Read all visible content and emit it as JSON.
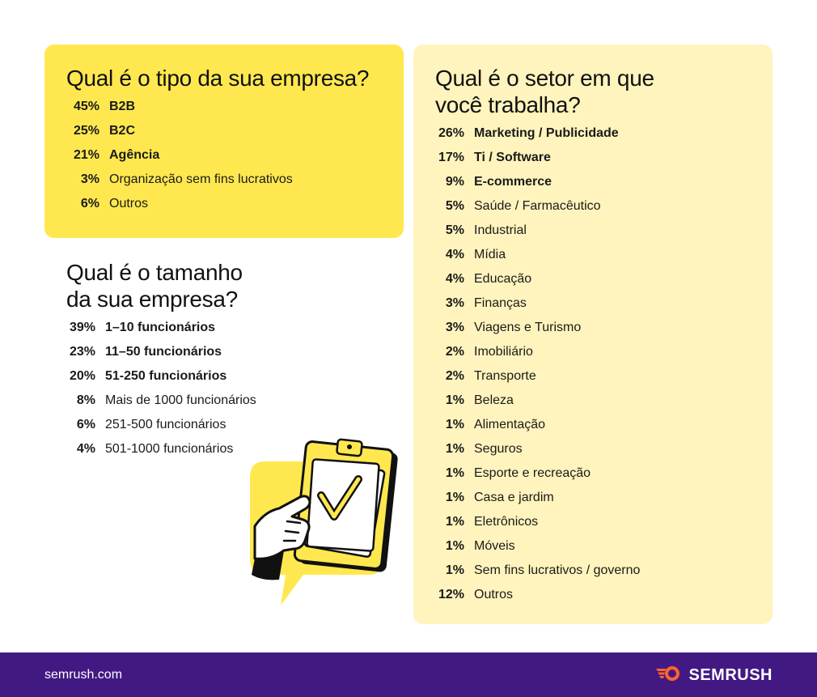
{
  "company_type": {
    "title": "Qual é o tipo da sua empresa?",
    "items": [
      {
        "pct": "45%",
        "label": "B2B"
      },
      {
        "pct": "25%",
        "label": "B2C"
      },
      {
        "pct": "21%",
        "label": "Agência"
      },
      {
        "pct": "3%",
        "label": "Organização sem fins lucrativos"
      },
      {
        "pct": "6%",
        "label": "Outros"
      }
    ]
  },
  "company_size": {
    "title_line1": "Qual é o tamanho",
    "title_line2": "da sua empresa?",
    "items": [
      {
        "pct": "39%",
        "label": "1–10 funcionários"
      },
      {
        "pct": "23%",
        "label": "11–50 funcionários"
      },
      {
        "pct": "20%",
        "label": "51-250 funcionários"
      },
      {
        "pct": "8%",
        "label": "Mais de 1000 funcionários"
      },
      {
        "pct": "6%",
        "label": "251-500 funcionários"
      },
      {
        "pct": "4%",
        "label": "501-1000 funcionários"
      }
    ]
  },
  "sector": {
    "title_line1": "Qual é o setor em que",
    "title_line2": "você trabalha?",
    "items": [
      {
        "pct": "26%",
        "label": "Marketing / Publicidade"
      },
      {
        "pct": "17%",
        "label": "Ti / Software"
      },
      {
        "pct": "9%",
        "label": "E-commerce"
      },
      {
        "pct": "5%",
        "label": "Saúde / Farmacêutico"
      },
      {
        "pct": "5%",
        "label": "Industrial"
      },
      {
        "pct": "4%",
        "label": "Mídia"
      },
      {
        "pct": "4%",
        "label": "Educação"
      },
      {
        "pct": "3%",
        "label": "Finanças"
      },
      {
        "pct": "3%",
        "label": "Viagens e Turismo"
      },
      {
        "pct": "2%",
        "label": "Imobiliário"
      },
      {
        "pct": "2%",
        "label": "Transporte"
      },
      {
        "pct": "1%",
        "label": "Beleza"
      },
      {
        "pct": "1%",
        "label": "Alimentação"
      },
      {
        "pct": "1%",
        "label": "Seguros"
      },
      {
        "pct": "1%",
        "label": "Esporte e recreação"
      },
      {
        "pct": "1%",
        "label": "Casa e jardim"
      },
      {
        "pct": "1%",
        "label": "Eletrônicos"
      },
      {
        "pct": "1%",
        "label": "Móveis"
      },
      {
        "pct": "1%",
        "label": "Sem fins lucrativos / governo"
      },
      {
        "pct": "12%",
        "label": "Outros"
      }
    ]
  },
  "footer": {
    "url": "semrush.com",
    "brand": "SEMRUSH",
    "logo_icon": "semrush-fire-icon"
  },
  "illustration_icon": "clipboard-checkmark-hand-icon",
  "colors": {
    "yellow": "#ffe84f",
    "pale_yellow": "#fff4bd",
    "footer_purple": "#421983",
    "logo_orange": "#ff642d"
  }
}
